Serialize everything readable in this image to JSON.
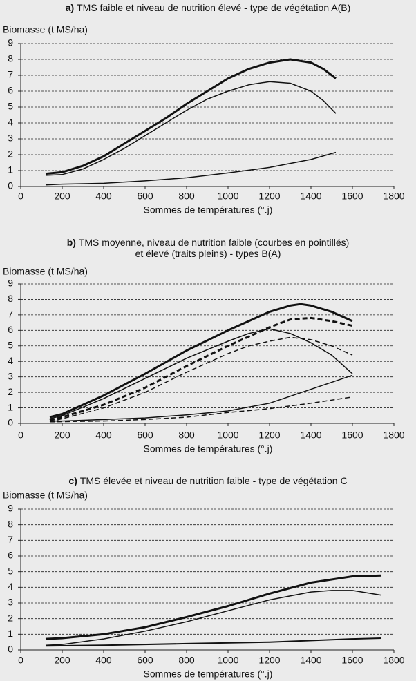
{
  "chart_data": [
    {
      "type": "line",
      "label": "a)",
      "title": [
        "TMS faible et niveau de nutrition élevé - type de végétation A(B)"
      ],
      "ylabel": "Biomasse (t MS/ha)",
      "xlabel": "Sommes de températures (°.j)",
      "xlim": [
        0,
        1800
      ],
      "xticks": [
        0,
        200,
        400,
        600,
        800,
        1000,
        1200,
        1400,
        1600,
        1800
      ],
      "ylim": [
        0,
        9
      ],
      "yticks": [
        0,
        1,
        2,
        3,
        4,
        5,
        6,
        7,
        8,
        9
      ],
      "grid": true,
      "series": [
        {
          "color": "#111111",
          "line_width": 3,
          "dashed": false,
          "x": [
            120,
            200,
            300,
            400,
            500,
            600,
            700,
            800,
            900,
            1000,
            1100,
            1200,
            1300,
            1400,
            1460,
            1520
          ],
          "values": [
            0.8,
            0.9,
            1.3,
            1.9,
            2.7,
            3.5,
            4.3,
            5.2,
            6.0,
            6.8,
            7.4,
            7.8,
            8.0,
            7.8,
            7.4,
            6.8
          ]
        },
        {
          "color": "#111111",
          "line_width": 1.5,
          "dashed": false,
          "x": [
            120,
            200,
            300,
            400,
            500,
            600,
            700,
            800,
            900,
            1000,
            1100,
            1200,
            1300,
            1400,
            1460,
            1520
          ],
          "values": [
            0.7,
            0.75,
            1.1,
            1.7,
            2.4,
            3.2,
            4.0,
            4.8,
            5.5,
            6.0,
            6.4,
            6.6,
            6.5,
            6.0,
            5.4,
            4.6
          ]
        },
        {
          "color": "#111111",
          "line_width": 1.5,
          "dashed": false,
          "x": [
            120,
            200,
            400,
            600,
            800,
            1000,
            1200,
            1400,
            1520
          ],
          "values": [
            0.1,
            0.15,
            0.2,
            0.35,
            0.55,
            0.85,
            1.2,
            1.7,
            2.15
          ]
        }
      ]
    },
    {
      "type": "line",
      "label": "b)",
      "title": [
        "TMS moyenne, niveau de nutrition faible (courbes en pointillés)",
        "et élevé (traits pleins) - types B(A)"
      ],
      "ylabel": "Biomasse (t MS/ha)",
      "xlabel": "Sommes de températures (°.j)",
      "xlim": [
        0,
        1800
      ],
      "xticks": [
        0,
        200,
        400,
        600,
        800,
        1000,
        1200,
        1400,
        1600,
        1800
      ],
      "ylim": [
        0,
        9
      ],
      "yticks": [
        0,
        1,
        2,
        3,
        4,
        5,
        6,
        7,
        8,
        9
      ],
      "grid": true,
      "series": [
        {
          "color": "#111111",
          "line_width": 3,
          "dashed": false,
          "x": [
            140,
            200,
            400,
            600,
            800,
            1000,
            1100,
            1200,
            1300,
            1350,
            1400,
            1500,
            1600
          ],
          "values": [
            0.4,
            0.6,
            1.8,
            3.2,
            4.7,
            6.0,
            6.6,
            7.2,
            7.6,
            7.7,
            7.6,
            7.2,
            6.6
          ]
        },
        {
          "color": "#111111",
          "line_width": 1.5,
          "dashed": false,
          "x": [
            140,
            200,
            400,
            600,
            800,
            1000,
            1100,
            1200,
            1300,
            1400,
            1500,
            1600
          ],
          "values": [
            0.3,
            0.5,
            1.6,
            2.9,
            4.2,
            5.3,
            5.8,
            6.1,
            5.8,
            5.2,
            4.4,
            3.2
          ]
        },
        {
          "color": "#111111",
          "line_width": 3,
          "dashed": true,
          "x": [
            140,
            200,
            400,
            600,
            800,
            1000,
            1100,
            1200,
            1300,
            1400,
            1500,
            1600
          ],
          "values": [
            0.2,
            0.4,
            1.2,
            2.3,
            3.7,
            5.0,
            5.6,
            6.2,
            6.7,
            6.8,
            6.6,
            6.3
          ]
        },
        {
          "color": "#111111",
          "line_width": 1.5,
          "dashed": true,
          "x": [
            140,
            200,
            400,
            600,
            800,
            1000,
            1100,
            1200,
            1300,
            1400,
            1500,
            1600
          ],
          "values": [
            0.1,
            0.3,
            1.0,
            2.0,
            3.3,
            4.5,
            5.0,
            5.3,
            5.55,
            5.4,
            5.0,
            4.4
          ]
        },
        {
          "color": "#111111",
          "line_width": 1.5,
          "dashed": false,
          "x": [
            140,
            200,
            400,
            600,
            800,
            1000,
            1200,
            1400,
            1600
          ],
          "values": [
            0.15,
            0.15,
            0.25,
            0.35,
            0.55,
            0.8,
            1.3,
            2.2,
            3.1
          ]
        },
        {
          "color": "#111111",
          "line_width": 1.5,
          "dashed": true,
          "x": [
            140,
            400,
            600,
            800,
            1000,
            1200,
            1400,
            1600
          ],
          "values": [
            0.1,
            0.15,
            0.25,
            0.4,
            0.7,
            0.95,
            1.3,
            1.7
          ]
        }
      ]
    },
    {
      "type": "line",
      "label": "c)",
      "title": [
        "TMS élevée et niveau de nutrition faible - type de végétation C"
      ],
      "ylabel": "Biomasse (t MS/ha)",
      "xlabel": "Sommes de températures (°.j)",
      "xlim": [
        0,
        1800
      ],
      "xticks": [
        0,
        200,
        400,
        600,
        800,
        1000,
        1200,
        1400,
        1600,
        1800
      ],
      "ylim": [
        0,
        9
      ],
      "yticks": [
        0,
        1,
        2,
        3,
        4,
        5,
        6,
        7,
        8,
        9
      ],
      "grid": true,
      "series": [
        {
          "color": "#111111",
          "line_width": 3,
          "dashed": false,
          "x": [
            120,
            200,
            400,
            600,
            800,
            1000,
            1200,
            1400,
            1600,
            1740
          ],
          "values": [
            0.7,
            0.75,
            1.0,
            1.45,
            2.1,
            2.8,
            3.6,
            4.3,
            4.7,
            4.75
          ]
        },
        {
          "color": "#111111",
          "line_width": 1.5,
          "dashed": false,
          "x": [
            120,
            200,
            400,
            600,
            800,
            1000,
            1200,
            1400,
            1500,
            1600,
            1740
          ],
          "values": [
            0.3,
            0.35,
            0.7,
            1.2,
            1.8,
            2.5,
            3.2,
            3.7,
            3.8,
            3.8,
            3.5
          ]
        },
        {
          "color": "#111111",
          "line_width": 2,
          "dashed": false,
          "x": [
            120,
            400,
            800,
            1200,
            1600,
            1740
          ],
          "values": [
            0.25,
            0.3,
            0.4,
            0.5,
            0.7,
            0.75
          ]
        }
      ]
    }
  ]
}
